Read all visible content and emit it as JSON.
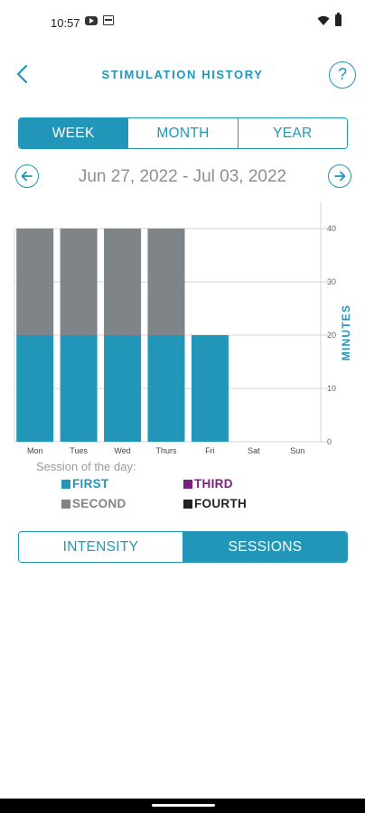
{
  "status_bar": {
    "time": "10:57"
  },
  "header": {
    "title": "STIMULATION HISTORY",
    "help_label": "?"
  },
  "period_tabs": [
    {
      "label": "WEEK",
      "active": true
    },
    {
      "label": "MONTH",
      "active": false
    },
    {
      "label": "YEAR",
      "active": false
    }
  ],
  "date_nav": {
    "range": "Jun 27, 2022 - Jul 03, 2022"
  },
  "colors": {
    "accent": "#2196b8",
    "first": "#2196b8",
    "second": "#7e8488",
    "third": "#7b1f82",
    "fourth": "#222222"
  },
  "chart_data": {
    "type": "bar",
    "stacked": true,
    "categories": [
      "Mon",
      "Tues",
      "Wed",
      "Thurs",
      "Fri",
      "Sat",
      "Sun"
    ],
    "series": [
      {
        "name": "FIRST",
        "color": "#2196b8",
        "values": [
          20,
          20,
          20,
          20,
          20,
          0,
          0
        ]
      },
      {
        "name": "SECOND",
        "color": "#7e8488",
        "values": [
          20,
          20,
          20,
          20,
          0,
          0,
          0
        ]
      },
      {
        "name": "THIRD",
        "color": "#7b1f82",
        "values": [
          0,
          0,
          0,
          0,
          0,
          0,
          0
        ]
      },
      {
        "name": "FOURTH",
        "color": "#222222",
        "values": [
          0,
          0,
          0,
          0,
          0,
          0,
          0
        ]
      }
    ],
    "ylabel": "MINUTES",
    "ylim": [
      0,
      40
    ],
    "yticks": [
      0,
      10,
      20,
      30,
      40
    ],
    "y_axis_side": "right",
    "grid": true
  },
  "legend": {
    "title": "Session of the day:",
    "items": [
      {
        "label": "FIRST",
        "color": "#2196b8"
      },
      {
        "label": "THIRD",
        "color": "#7b1f82"
      },
      {
        "label": "SECOND",
        "color": "#7e8488"
      },
      {
        "label": "FOURTH",
        "color": "#222222"
      }
    ]
  },
  "view_tabs": [
    {
      "label": "INTENSITY",
      "active": false
    },
    {
      "label": "SESSIONS",
      "active": true
    }
  ]
}
